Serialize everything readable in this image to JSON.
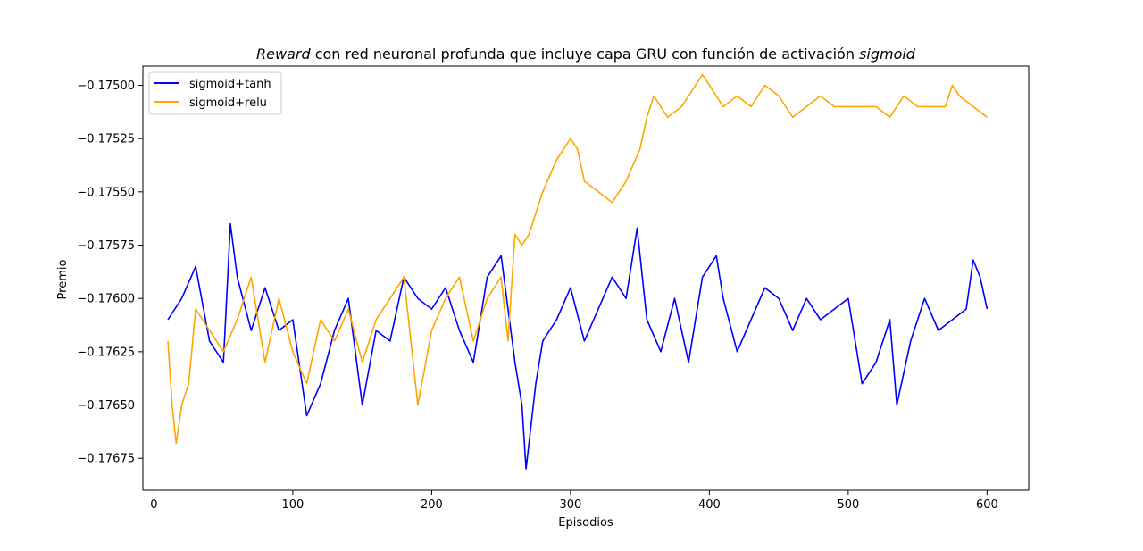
{
  "chart_data": {
    "type": "line",
    "title_parts": [
      {
        "text": "Reward",
        "italic": true
      },
      {
        "text": " con red neuronal profunda que incluye capa GRU con función de activación ",
        "italic": false
      },
      {
        "text": "sigmoid",
        "italic": true
      }
    ],
    "xlabel": "Episodios",
    "ylabel": "Premio",
    "xlim": [
      -8,
      630
    ],
    "ylim": [
      -0.1769,
      -0.17491
    ],
    "xticks": [
      0,
      100,
      200,
      300,
      400,
      500,
      600
    ],
    "yticks": [
      -0.17675,
      -0.1765,
      -0.17625,
      -0.176,
      -0.17575,
      -0.1755,
      -0.17525,
      -0.175
    ],
    "ytick_labels": [
      "−0.17675",
      "−0.17650",
      "−0.17625",
      "−0.17600",
      "−0.17575",
      "−0.17550",
      "−0.17525",
      "−0.17500"
    ],
    "grid": false,
    "legend_position": "upper left",
    "series": [
      {
        "name": "sigmoid+tanh",
        "color": "#0000ff",
        "x": [
          10,
          20,
          30,
          40,
          50,
          55,
          60,
          70,
          80,
          90,
          100,
          110,
          120,
          130,
          140,
          150,
          160,
          170,
          180,
          190,
          200,
          210,
          220,
          230,
          240,
          250,
          260,
          265,
          268,
          275,
          280,
          290,
          300,
          310,
          320,
          330,
          340,
          348,
          355,
          365,
          375,
          385,
          395,
          405,
          410,
          420,
          430,
          440,
          450,
          460,
          470,
          480,
          490,
          500,
          510,
          520,
          530,
          535,
          545,
          555,
          565,
          575,
          585,
          590,
          595,
          600
        ],
        "values": [
          -0.1761,
          -0.176,
          -0.17585,
          -0.1762,
          -0.1763,
          -0.17565,
          -0.1759,
          -0.17615,
          -0.17595,
          -0.17615,
          -0.1761,
          -0.17655,
          -0.1764,
          -0.17615,
          -0.176,
          -0.1765,
          -0.17615,
          -0.1762,
          -0.1759,
          -0.176,
          -0.17605,
          -0.17595,
          -0.17615,
          -0.1763,
          -0.1759,
          -0.1758,
          -0.1763,
          -0.1765,
          -0.1768,
          -0.1764,
          -0.1762,
          -0.1761,
          -0.17595,
          -0.1762,
          -0.17605,
          -0.1759,
          -0.176,
          -0.17567,
          -0.1761,
          -0.17625,
          -0.176,
          -0.1763,
          -0.1759,
          -0.1758,
          -0.176,
          -0.17625,
          -0.1761,
          -0.17595,
          -0.176,
          -0.17615,
          -0.176,
          -0.1761,
          -0.17605,
          -0.176,
          -0.1764,
          -0.1763,
          -0.1761,
          -0.1765,
          -0.1762,
          -0.176,
          -0.17615,
          -0.1761,
          -0.17605,
          -0.17582,
          -0.1759,
          -0.17605
        ]
      },
      {
        "name": "sigmoid+relu",
        "color": "#ffa500",
        "x": [
          10,
          13,
          16,
          20,
          25,
          30,
          40,
          50,
          60,
          70,
          80,
          90,
          100,
          110,
          120,
          130,
          140,
          150,
          160,
          170,
          180,
          190,
          200,
          210,
          215,
          220,
          230,
          240,
          250,
          255,
          260,
          265,
          270,
          275,
          280,
          290,
          295,
          300,
          305,
          310,
          320,
          330,
          340,
          350,
          355,
          360,
          370,
          380,
          390,
          395,
          400,
          410,
          420,
          430,
          440,
          450,
          460,
          470,
          480,
          490,
          500,
          510,
          520,
          530,
          540,
          550,
          560,
          570,
          575,
          580,
          590,
          600
        ],
        "values": [
          -0.1762,
          -0.1765,
          -0.17668,
          -0.1765,
          -0.1764,
          -0.17605,
          -0.17615,
          -0.17625,
          -0.1761,
          -0.1759,
          -0.1763,
          -0.176,
          -0.17625,
          -0.1764,
          -0.1761,
          -0.1762,
          -0.17605,
          -0.1763,
          -0.1761,
          -0.176,
          -0.1759,
          -0.1765,
          -0.17615,
          -0.176,
          -0.17595,
          -0.1759,
          -0.1762,
          -0.176,
          -0.1759,
          -0.1762,
          -0.1757,
          -0.17575,
          -0.1757,
          -0.1756,
          -0.1755,
          -0.17535,
          -0.1753,
          -0.17525,
          -0.1753,
          -0.17545,
          -0.1755,
          -0.17555,
          -0.17545,
          -0.1753,
          -0.17515,
          -0.17505,
          -0.17515,
          -0.1751,
          -0.175,
          -0.17495,
          -0.175,
          -0.1751,
          -0.17505,
          -0.1751,
          -0.175,
          -0.17505,
          -0.17515,
          -0.1751,
          -0.17505,
          -0.1751,
          -0.1751,
          -0.1751,
          -0.1751,
          -0.17515,
          -0.17505,
          -0.1751,
          -0.1751,
          -0.1751,
          -0.175,
          -0.17505,
          -0.1751,
          -0.17515
        ]
      }
    ]
  }
}
